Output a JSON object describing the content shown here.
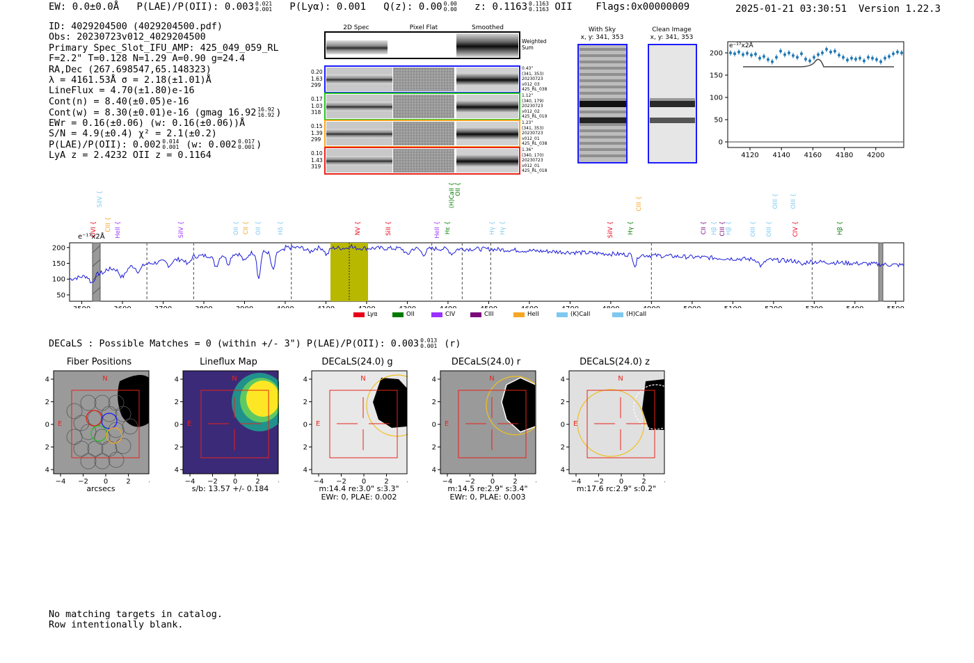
{
  "header": {
    "ew": "EW: 0.0±0.0Å",
    "plae_label": "P(LAE)/P(OII): 0.003",
    "plae_hi": "0.021",
    "plae_lo": "0.001",
    "plya": "P(Lyα): 0.001",
    "qz_label": "Q(z): 0.00",
    "qz_hi": "0.00",
    "qz_lo": "0.00",
    "z_label": "z: 0.1163",
    "z_hi": "0.1163",
    "z_lo": "0.1163",
    "z_line": "OII",
    "flags": "Flags:0x00000009",
    "timestamp": "2025-01-21 03:30:51",
    "version": "Version 1.22.3"
  },
  "info": {
    "id": "ID: 4029204500 (4029204500.pdf)",
    "obs": "Obs: 20230723v012_4029204500",
    "primary": "Primary Spec_Slot_IFU_AMP: 425_049_059_RL",
    "fiber": "F=2.2\"  T=0.128  N=1.29  A=0.90  g=24.4",
    "radec": "RA,Dec (267.698547,65.148323)",
    "lambda": "λ = 4161.53Å  σ = 2.18(±1.01)Å",
    "lineflux": "LineFlux = 4.70(±1.80)e-16",
    "cont_n": "Cont(n) = 8.40(±0.05)e-16",
    "cont_w": "Cont(w) = 8.30(±0.01)e-16 (gmag 16.92",
    "cont_w_hi": "16.92",
    "cont_w_lo": "16.92",
    "cont_w_end": ")",
    "ewr": "EWr = 0.16(±0.06) (w: 0.16(±0.06))Å",
    "sn": "S/N = 4.9(±0.4)  χ² = 2.1(±0.2)",
    "plae": "P(LAE)/P(OII): 0.002",
    "plae_hi": "0.014",
    "plae_lo": "0.001",
    "plae_w": "(w: 0.002",
    "plae_w_hi": "0.017",
    "plae_w_lo": "0.001",
    "plae_w_end": ")",
    "lya_z": "LyA z = 2.4232  OII z = 0.1164"
  },
  "fiber_panel": {
    "col_2d": "2D Spec",
    "col_flat": "Pixel Flat",
    "col_smooth": "Smoothed",
    "weighted": "Weighted",
    "sum": "Sum",
    "rows": [
      {
        "color": "#1a1aff",
        "stats": [
          "0.20",
          "1.63",
          "299"
        ],
        "meta": [
          "0.43\"",
          "(341, 353)",
          "20230723",
          "v012_03",
          "425_RL_038"
        ]
      },
      {
        "color": "#22c322",
        "stats": [
          "0.17",
          "1.03",
          "318"
        ],
        "meta": [
          "1.12\"",
          "(340, 179)",
          "20230723",
          "v012_02",
          "425_RL_019"
        ]
      },
      {
        "color": "#f5a623",
        "stats": [
          "0.15",
          "1.39",
          "299"
        ],
        "meta": [
          "1.23\"",
          "(341, 353)",
          "20230723",
          "v012_01",
          "425_RL_038"
        ]
      },
      {
        "color": "#e8231a",
        "stats": [
          "0.10",
          "1.43",
          "319"
        ],
        "meta": [
          "1.36\"",
          "(340, 170)",
          "20230723",
          "v012_01",
          "425_RL_018"
        ]
      }
    ]
  },
  "sky_panel": {
    "with_sky": "With Sky",
    "with_sky_xy": "x, y: 341, 353",
    "clean": "Clean Image",
    "clean_xy": "x, y: 341, 353"
  },
  "zoom_plot": {
    "unit": "e⁻¹⁷x2Å",
    "yticks": [
      "200",
      "150",
      "100",
      "50",
      "0"
    ],
    "xticks": [
      "4120",
      "4140",
      "4160",
      "4180",
      "4200"
    ]
  },
  "full_spectrum": {
    "unit": "e⁻¹⁷x2Å",
    "yticks": [
      "200",
      "150",
      "100",
      "50"
    ],
    "xticks": [
      "3500",
      "3600",
      "3700",
      "3800",
      "3900",
      "4000",
      "4100",
      "4200",
      "4300",
      "4400",
      "4500",
      "4600",
      "4700",
      "4800",
      "4900",
      "5000",
      "5100",
      "5200",
      "5300",
      "5400",
      "5500"
    ],
    "legend": [
      {
        "label": "Lyα",
        "color": "#e8001a"
      },
      {
        "label": "OII",
        "color": "#007a00"
      },
      {
        "label": "CIV",
        "color": "#9b30ff"
      },
      {
        "label": "CIII",
        "color": "#7a0a7a"
      },
      {
        "label": "HeII",
        "color": "#f5a623"
      },
      {
        "label": "(K)CaII",
        "color": "#7ec8f0"
      },
      {
        "label": "(H)CaII",
        "color": "#7ec8f0"
      }
    ]
  },
  "spectral_lines": [
    {
      "label": "OVI",
      "color": "#e8001a"
    },
    {
      "label": "SiIV",
      "color": "#7ec8f0"
    },
    {
      "label": "CIII",
      "color": "#f5a623"
    },
    {
      "label": "HeII",
      "color": "#9b30ff"
    },
    {
      "label": "SiIV",
      "color": "#9b30ff"
    },
    {
      "label": "OII",
      "color": "#7ec8f0"
    },
    {
      "label": "CII",
      "color": "#f5a623"
    },
    {
      "label": "OII",
      "color": "#7ec8f0"
    },
    {
      "label": "Hδ",
      "color": "#7ec8f0"
    },
    {
      "label": "NV",
      "color": "#e8001a"
    },
    {
      "label": "SiII",
      "color": "#e8001a"
    },
    {
      "label": "HeII",
      "color": "#9b30ff"
    },
    {
      "label": "Hε",
      "color": "#007a00"
    },
    {
      "label": "(H)CaII",
      "color": "#007a00"
    },
    {
      "label": "OII",
      "color": "#007a00"
    },
    {
      "label": "Hγ",
      "color": "#7ec8f0"
    },
    {
      "label": "Hγ",
      "color": "#7ec8f0"
    },
    {
      "label": "SiIV",
      "color": "#e8001a"
    },
    {
      "label": "Hγ",
      "color": "#007a00"
    },
    {
      "label": "CIII",
      "color": "#f5a623"
    },
    {
      "label": "CII",
      "color": "#7a0a7a"
    },
    {
      "label": "Hβ",
      "color": "#7ec8f0"
    },
    {
      "label": "CIII",
      "color": "#7a0a7a"
    },
    {
      "label": "Hβ",
      "color": "#7ec8f0"
    },
    {
      "label": "OIII",
      "color": "#7ec8f0"
    },
    {
      "label": "OIII",
      "color": "#7ec8f0"
    },
    {
      "label": "OIII",
      "color": "#7ec8f0"
    },
    {
      "label": "CIV",
      "color": "#e8001a"
    },
    {
      "label": "OIII",
      "color": "#7ec8f0"
    },
    {
      "label": "Hβ",
      "color": "#007a00"
    }
  ],
  "decals_line": {
    "text": "DECaLS : Possible Matches = 0 (within +/- 3\")  P(LAE)/P(OII): 0.003",
    "hi": "0.013",
    "lo": "0.001",
    "end": "(r)"
  },
  "cutouts": [
    {
      "title": "Fiber Positions",
      "cap1": "arcsecs",
      "cap2": ""
    },
    {
      "title": "Lineflux Map",
      "cap1": "s/b: 13.57 +/- 0.184",
      "cap2": ""
    },
    {
      "title": "DECaLS(24.0) g",
      "cap1": "m:14.4  re:3.0\"  s:3.3\"",
      "cap2": "EWr: 0, PLAE: 0.002"
    },
    {
      "title": "DECaLS(24.0) r",
      "cap1": "m:14.5  re:2.9\"  s:3.4\"",
      "cap2": "EWr: 0, PLAE: 0.003"
    },
    {
      "title": "DECaLS(24.0) z",
      "cap1": "m:17.6 rc:2.9\"  s:0.2\"",
      "cap2": ""
    }
  ],
  "cutout_axes": {
    "ticks": [
      "4",
      "2",
      "0",
      "−2",
      "−4"
    ],
    "xticks": [
      "−4",
      "−2",
      "0",
      "2",
      "4"
    ],
    "north": "N",
    "east": "E"
  },
  "footer": {
    "line1": "No matching targets in catalog.",
    "line2": "Row intentionally blank."
  }
}
